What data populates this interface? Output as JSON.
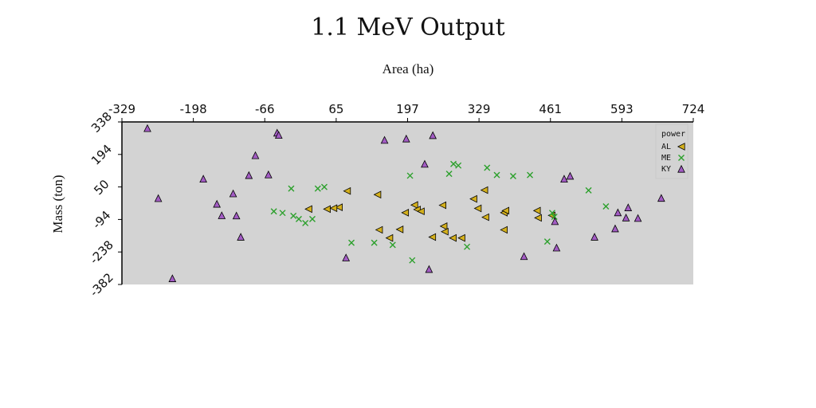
{
  "chart_data": {
    "type": "scatter",
    "title": "1.1 MeV Output",
    "xlabel": "Area (ha)",
    "ylabel": "Mass (ton)",
    "x_ticks": [
      "-329",
      "-198",
      "-66",
      "65",
      "197",
      "329",
      "461",
      "593",
      "724"
    ],
    "y_ticks": [
      "338",
      "194",
      "50",
      "-94",
      "-238",
      "-382"
    ],
    "xlim": [
      -329,
      724
    ],
    "ylim": [
      -382,
      338
    ],
    "x_axis_position": "top",
    "grid": false,
    "plot_background": "#d3d3d3",
    "legend": {
      "title": "power",
      "position": "top-right"
    },
    "series": [
      {
        "name": "AL",
        "marker": "triangle-left",
        "color": "#d4b01c",
        "points": [
          [
            86,
            32
          ],
          [
            15,
            -48
          ],
          [
            49,
            -48
          ],
          [
            71,
            -40
          ],
          [
            61,
            -44
          ],
          [
            142,
            16
          ],
          [
            210,
            -30
          ],
          [
            215,
            -50
          ],
          [
            222,
            -58
          ],
          [
            193,
            -64
          ],
          [
            183,
            -138
          ],
          [
            145,
            -140
          ],
          [
            164,
            -176
          ],
          [
            243,
            -172
          ],
          [
            264,
            -124
          ],
          [
            262,
            -31
          ],
          [
            266,
            -148
          ],
          [
            281,
            -176
          ],
          [
            297,
            -176
          ],
          [
            319,
            -3
          ],
          [
            327,
            -45
          ],
          [
            339,
            36
          ],
          [
            341,
            -84
          ],
          [
            375,
            -64
          ],
          [
            378,
            -55
          ],
          [
            375,
            -140
          ],
          [
            436,
            -55
          ],
          [
            438,
            -87
          ],
          [
            463,
            -76
          ]
        ]
      },
      {
        "name": "ME",
        "marker": "x",
        "color": "#2ca02c",
        "points": [
          [
            -49,
            -58
          ],
          [
            -33,
            -65
          ],
          [
            -13,
            -78
          ],
          [
            -3,
            -92
          ],
          [
            -17,
            43
          ],
          [
            9,
            -110
          ],
          [
            22,
            -92
          ],
          [
            32,
            43
          ],
          [
            44,
            50
          ],
          [
            94,
            -197
          ],
          [
            136,
            -197
          ],
          [
            170,
            -207
          ],
          [
            202,
            100
          ],
          [
            206,
            -275
          ],
          [
            274,
            108
          ],
          [
            282,
            152
          ],
          [
            291,
            145
          ],
          [
            307,
            -215
          ],
          [
            344,
            135
          ],
          [
            362,
            103
          ],
          [
            392,
            98
          ],
          [
            423,
            103
          ],
          [
            464,
            -65
          ],
          [
            468,
            -82
          ],
          [
            455,
            -192
          ],
          [
            531,
            35
          ],
          [
            563,
            -36
          ]
        ]
      },
      {
        "name": "KY",
        "marker": "triangle-up",
        "color": "#a35cc4",
        "points": [
          [
            -282,
            310
          ],
          [
            -262,
            0
          ],
          [
            -179,
            86
          ],
          [
            -154,
            -25
          ],
          [
            -145,
            -76
          ],
          [
            -124,
            21
          ],
          [
            -118,
            -77
          ],
          [
            -110,
            -171
          ],
          [
            -95,
            102
          ],
          [
            -83,
            190
          ],
          [
            -59,
            105
          ],
          [
            -43,
            290
          ],
          [
            -40,
            280
          ],
          [
            84,
            -263
          ],
          [
            155,
            258
          ],
          [
            195,
            264
          ],
          [
            229,
            152
          ],
          [
            237,
            -314
          ],
          [
            244,
            279
          ],
          [
            412,
            -257
          ],
          [
            472,
            -219
          ],
          [
            469,
            -102
          ],
          [
            486,
            86
          ],
          [
            497,
            99
          ],
          [
            542,
            -171
          ],
          [
            580,
            -134
          ],
          [
            585,
            -63
          ],
          [
            600,
            -86
          ],
          [
            604,
            -41
          ],
          [
            622,
            -88
          ],
          [
            665,
            1
          ],
          [
            -236,
            -355
          ]
        ]
      }
    ]
  }
}
